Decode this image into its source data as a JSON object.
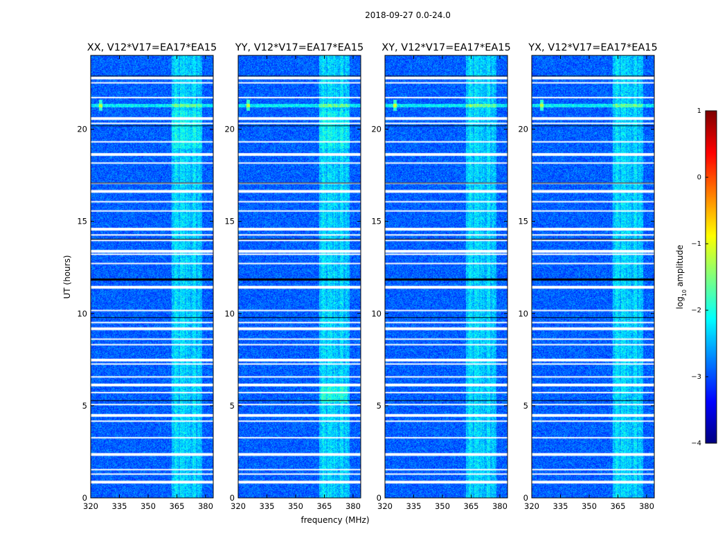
{
  "chart_data": {
    "type": "heatmap",
    "title": "2018-09-27 0.0-24.0",
    "xlabel": "frequency (MHz)",
    "ylabel": "UT (hours)",
    "xlim": [
      320,
      384
    ],
    "ylim": [
      0,
      24
    ],
    "xticks": [
      320,
      335,
      350,
      365,
      380
    ],
    "xtick_labels": [
      "320",
      "335",
      "350",
      "365",
      "380"
    ],
    "yticks": [
      0,
      5,
      10,
      15,
      20
    ],
    "ytick_labels": [
      "0",
      "5",
      "10",
      "15",
      "20"
    ],
    "colorbar": {
      "label": "log10 amplitude",
      "label_base": "log",
      "label_sub": "10",
      "label_rest": " amplitude",
      "range": [
        -4,
        1
      ],
      "ticks": [
        1,
        0,
        -1,
        -2,
        -3,
        -4
      ],
      "tick_labels": [
        "1",
        "0",
        "−1",
        "−2",
        "−3",
        "−4"
      ],
      "colormap": "jet",
      "stops": [
        "#00007f",
        "#0000ff",
        "#007fff",
        "#00ffff",
        "#7fff7f",
        "#ffff00",
        "#ff7f00",
        "#ff0000",
        "#7f0000"
      ]
    },
    "background_level": -2.9,
    "rfi_band_mhz": [
      362,
      378
    ],
    "blank_rows_ut": [
      0.93,
      1.33,
      1.57,
      2.43,
      3.3,
      4.2,
      4.55,
      5.1,
      5.75,
      6.2,
      6.6,
      7.3,
      7.55,
      8.35,
      8.65,
      9.25,
      9.55,
      10.2,
      11.5,
      12.75,
      13.25,
      13.45,
      14.0,
      14.3,
      14.65,
      15.6,
      16.1,
      16.7,
      17.1,
      18.2,
      18.7,
      19.35,
      20.35,
      20.65,
      21.75,
      22.55,
      22.85
    ],
    "dark_row_ut": 11.9,
    "series": [
      {
        "name": "XX, V12*V17=EA17*EA15"
      },
      {
        "name": "YY, V12*V17=EA17*EA15"
      },
      {
        "name": "XY, V12*V17=EA17*EA15"
      },
      {
        "name": "YX, V12*V17=EA17*EA15"
      }
    ]
  }
}
